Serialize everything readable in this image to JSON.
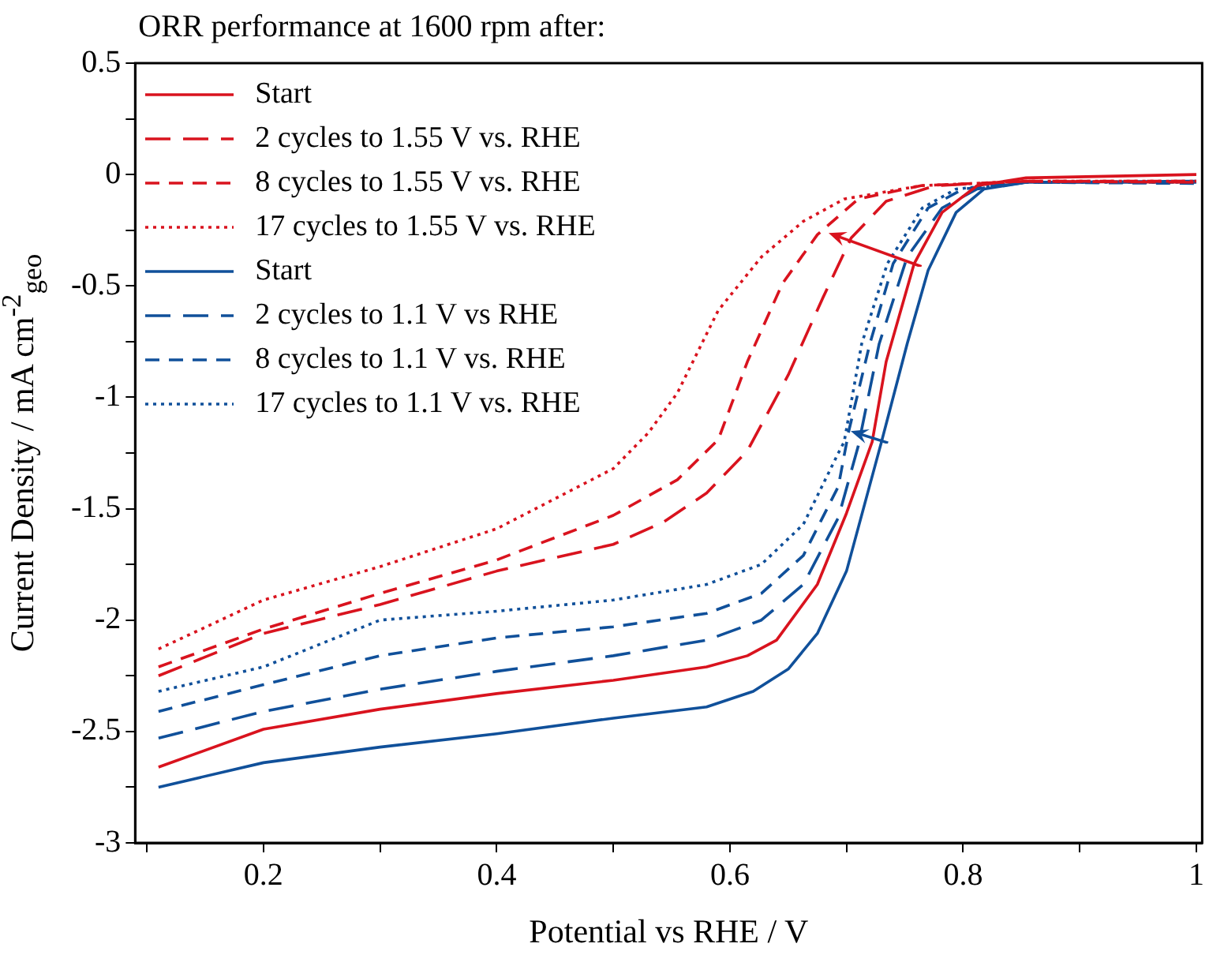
{
  "chart_data": {
    "type": "line",
    "title": "ORR performance at 1600 rpm after:",
    "xlabel": "Potential vs RHE / V",
    "ylabel": "Current Density / mA cm$^{-2}$$_{geo}$",
    "xlim": [
      0.09,
      1.005
    ],
    "ylim": [
      -3,
      0.5
    ],
    "xticks": [
      {
        "value": 0.1,
        "label": null
      },
      0.2,
      {
        "value": 0.3,
        "label": null
      },
      0.4,
      {
        "value": 0.5,
        "label": null
      },
      0.6,
      {
        "value": 0.7,
        "label": null
      },
      0.8,
      {
        "value": 0.9,
        "label": null
      },
      1
    ],
    "yticks": [
      -3,
      {
        "value": -2.75,
        "label": null
      },
      -2.5,
      {
        "value": -2.25,
        "label": null
      },
      -2,
      {
        "value": -1.75,
        "label": null
      },
      -1.5,
      {
        "value": -1.25,
        "label": null
      },
      -1,
      {
        "value": -0.75,
        "label": null
      },
      -0.5,
      {
        "value": -0.25,
        "label": null
      },
      0,
      {
        "value": 0.25,
        "label": null
      },
      0.5
    ],
    "legend": "top left",
    "grid": false,
    "marker": "none",
    "series": [
      {
        "name": "Start",
        "color": "#d9131e",
        "line_style": "solid",
        "x": [
          0.11,
          0.2,
          0.3,
          0.4,
          0.5,
          0.58,
          0.615,
          0.64,
          0.675,
          0.7,
          0.722,
          0.734,
          0.758,
          0.782,
          0.812,
          0.854,
          1.0
        ],
        "values": [
          -2.66,
          -2.49,
          -2.4,
          -2.33,
          -2.27,
          -2.21,
          -2.16,
          -2.09,
          -1.84,
          -1.52,
          -1.2,
          -0.84,
          -0.4,
          -0.17,
          -0.05,
          -0.015,
          0
        ]
      },
      {
        "name": "2 cycles to 1.55 V vs. RHE",
        "color": "#d9131e",
        "line_style": "longdash",
        "x": [
          0.11,
          0.2,
          0.3,
          0.4,
          0.5,
          0.543,
          0.58,
          0.615,
          0.65,
          0.68,
          0.704,
          0.734,
          0.776,
          0.854,
          1.0
        ],
        "values": [
          -2.25,
          -2.06,
          -1.93,
          -1.78,
          -1.66,
          -1.56,
          -1.43,
          -1.24,
          -0.9,
          -0.55,
          -0.285,
          -0.12,
          -0.05,
          -0.03,
          -0.035
        ]
      },
      {
        "name": "8 cycles to 1.55 V vs. RHE",
        "color": "#d9131e",
        "line_style": "dashed",
        "x": [
          0.11,
          0.2,
          0.3,
          0.4,
          0.5,
          0.555,
          0.59,
          0.615,
          0.645,
          0.675,
          0.71,
          0.764,
          0.854,
          1.0
        ],
        "values": [
          -2.21,
          -2.04,
          -1.88,
          -1.73,
          -1.53,
          -1.37,
          -1.19,
          -0.84,
          -0.49,
          -0.27,
          -0.11,
          -0.05,
          -0.03,
          -0.03
        ]
      },
      {
        "name": "17 cycles to 1.55 V vs. RHE",
        "color": "#d9131e",
        "line_style": "dotted",
        "x": [
          0.11,
          0.2,
          0.3,
          0.4,
          0.5,
          0.53,
          0.555,
          0.59,
          0.627,
          0.663,
          0.698,
          0.764,
          0.854,
          1.0
        ],
        "values": [
          -2.13,
          -1.91,
          -1.76,
          -1.59,
          -1.32,
          -1.16,
          -0.98,
          -0.61,
          -0.37,
          -0.21,
          -0.11,
          -0.05,
          -0.03,
          -0.03
        ]
      },
      {
        "name": "Start",
        "color": "#10509a",
        "line_style": "solid",
        "x": [
          0.11,
          0.2,
          0.3,
          0.4,
          0.5,
          0.58,
          0.62,
          0.65,
          0.675,
          0.7,
          0.73,
          0.752,
          0.77,
          0.794,
          0.818,
          0.854,
          1.0
        ],
        "values": [
          -2.75,
          -2.64,
          -2.57,
          -2.51,
          -2.44,
          -2.39,
          -2.32,
          -2.22,
          -2.06,
          -1.78,
          -1.2,
          -0.76,
          -0.43,
          -0.17,
          -0.065,
          -0.035,
          -0.03
        ]
      },
      {
        "name": "2 cycles to 1.1 V vs RHE",
        "color": "#10509a",
        "line_style": "longdash",
        "x": [
          0.11,
          0.2,
          0.3,
          0.4,
          0.5,
          0.58,
          0.627,
          0.663,
          0.693,
          0.71,
          0.728,
          0.752,
          0.782,
          0.812,
          0.854,
          1.0
        ],
        "values": [
          -2.53,
          -2.41,
          -2.31,
          -2.23,
          -2.16,
          -2.09,
          -2.0,
          -1.84,
          -1.54,
          -1.22,
          -0.76,
          -0.37,
          -0.15,
          -0.065,
          -0.035,
          -0.035
        ]
      },
      {
        "name": "8 cycles to 1.1 V vs. RHE",
        "color": "#10509a",
        "line_style": "dashed",
        "x": [
          0.11,
          0.2,
          0.3,
          0.4,
          0.5,
          0.58,
          0.627,
          0.663,
          0.693,
          0.702,
          0.72,
          0.74,
          0.77,
          0.8,
          0.854,
          1.0
        ],
        "values": [
          -2.41,
          -2.29,
          -2.16,
          -2.08,
          -2.03,
          -1.97,
          -1.88,
          -1.71,
          -1.4,
          -1.15,
          -0.76,
          -0.4,
          -0.15,
          -0.065,
          -0.035,
          -0.04
        ]
      },
      {
        "name": "17 cycles to 1.1 V vs. RHE",
        "color": "#10509a",
        "line_style": "dotted",
        "x": [
          0.11,
          0.2,
          0.3,
          0.4,
          0.5,
          0.58,
          0.627,
          0.663,
          0.693,
          0.698,
          0.713,
          0.735,
          0.765,
          0.794,
          0.854,
          1.0
        ],
        "values": [
          -2.32,
          -2.21,
          -2.0,
          -1.96,
          -1.91,
          -1.84,
          -1.75,
          -1.57,
          -1.25,
          -1.2,
          -0.76,
          -0.4,
          -0.15,
          -0.065,
          -0.035,
          -0.035
        ]
      }
    ]
  }
}
